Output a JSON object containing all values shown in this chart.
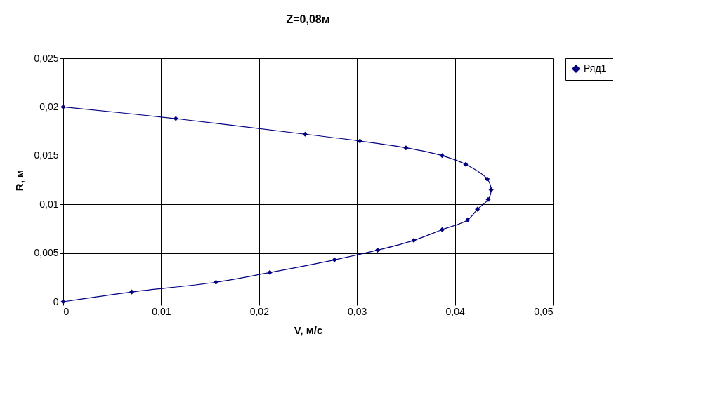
{
  "chart_data": {
    "type": "line",
    "title": "Z=0,08м",
    "xlabel": "V, м/с",
    "ylabel": "R, м",
    "series": [
      {
        "name": "Ряд1",
        "color": "#000080",
        "x": [
          0,
          0.007,
          0.0156,
          0.0211,
          0.0277,
          0.0321,
          0.0358,
          0.0387,
          0.0413,
          0.0423,
          0.0434,
          0.0437,
          0.0433,
          0.0411,
          0.0387,
          0.035,
          0.0303,
          0.0247,
          0.0115,
          0
        ],
        "values": [
          0,
          0.001,
          0.002,
          0.003,
          0.0043,
          0.0053,
          0.0063,
          0.0074,
          0.0084,
          0.0095,
          0.0105,
          0.0115,
          0.0126,
          0.0141,
          0.015,
          0.0158,
          0.0165,
          0.0172,
          0.0188,
          0.02
        ]
      }
    ],
    "xlim": [
      0,
      0.05
    ],
    "xticks": [
      0,
      {
        "value": 0.01,
        "label": "0,01"
      },
      {
        "value": 0.02,
        "label": "0,02"
      },
      {
        "value": 0.03,
        "label": "0,03"
      },
      {
        "value": 0.04,
        "label": "0,04"
      },
      {
        "value": 0.05,
        "label": "0,05"
      }
    ],
    "ylim": [
      0,
      0.025
    ],
    "yticks": [
      0,
      {
        "value": 0.005,
        "label": "0,005"
      },
      {
        "value": 0.01,
        "label": "0,01"
      },
      {
        "value": 0.015,
        "label": "0,015"
      },
      {
        "value": 0.02,
        "label": "0,02"
      },
      {
        "value": 0.025,
        "label": "0,025"
      }
    ],
    "grid": true,
    "legend": "right",
    "marker": "diamond",
    "line_style": "solid"
  }
}
